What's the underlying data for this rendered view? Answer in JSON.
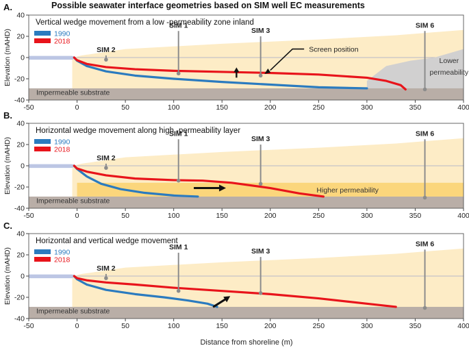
{
  "figure": {
    "title": "Possible seawater interface geometries based on SIM well EC measurements",
    "xlabel": "Distance from shoreline (m)",
    "ylabel": "Elevation (mAHD)"
  },
  "chart_data": [
    {
      "type": "area",
      "panel_letter": "A.",
      "panel_title": "Vertical wedge movement from a low -permeability zone inland",
      "xlim": [
        -50,
        400
      ],
      "ylim": [
        -40,
        40
      ],
      "xticks": [
        -50,
        0,
        50,
        100,
        150,
        200,
        250,
        300,
        350,
        400
      ],
      "yticks": [
        -40,
        -20,
        0,
        20,
        40
      ],
      "legend": [
        {
          "name": "1990",
          "color": "#2b7bbf"
        },
        {
          "name": "2018",
          "color": "#e8141b"
        }
      ],
      "wells": [
        {
          "name": "SIM 2",
          "x": 30,
          "top": 2,
          "bottom": -2
        },
        {
          "name": "SIM 1",
          "x": 105,
          "top": 25,
          "bottom": -15
        },
        {
          "name": "SIM 3",
          "x": 190,
          "top": 20,
          "bottom": -17
        },
        {
          "name": "SIM 6",
          "x": 360,
          "top": 25,
          "bottom": -30
        }
      ],
      "series": [
        {
          "name": "1990",
          "color": "#2b7bbf",
          "x": [
            -3,
            0,
            10,
            30,
            60,
            100,
            150,
            200,
            250,
            300
          ],
          "y": [
            0,
            -3,
            -8,
            -13,
            -17,
            -20,
            -23,
            -25.5,
            -28,
            -29
          ]
        },
        {
          "name": "2018",
          "color": "#e8141b",
          "x": [
            -3,
            0,
            10,
            30,
            60,
            100,
            150,
            200,
            250,
            300,
            320,
            335,
            340
          ],
          "y": [
            0,
            -2.5,
            -6,
            -9,
            -11,
            -12.5,
            -13.5,
            -14.5,
            -16,
            -19,
            -22,
            -26,
            -30
          ]
        }
      ],
      "regions": [
        {
          "label": "Impermeable substrate",
          "y0": -40,
          "y1": -29,
          "color": "#b9aea7"
        },
        {
          "label": "Lower\npermeability",
          "x0": 300,
          "color": "#d1d0d0"
        }
      ],
      "annotations": [
        {
          "text": "Screen position",
          "x": 240,
          "y": 8
        },
        {
          "text": "↑",
          "x": 165,
          "y": -17
        }
      ]
    },
    {
      "type": "area",
      "panel_letter": "B.",
      "panel_title": "Horizontal wedge movement along high -permeability layer",
      "xlim": [
        -50,
        400
      ],
      "ylim": [
        -40,
        40
      ],
      "xticks": [
        -50,
        0,
        50,
        100,
        150,
        200,
        250,
        300,
        350,
        400
      ],
      "yticks": [
        -40,
        -20,
        0,
        20,
        40
      ],
      "legend": [
        {
          "name": "1990",
          "color": "#2b7bbf"
        },
        {
          "name": "2018",
          "color": "#e8141b"
        }
      ],
      "wells": [
        {
          "name": "SIM 2",
          "x": 30,
          "top": 2,
          "bottom": -2
        },
        {
          "name": "SIM 1",
          "x": 105,
          "top": 25,
          "bottom": -14
        },
        {
          "name": "SIM 3",
          "x": 190,
          "top": 20,
          "bottom": -17
        },
        {
          "name": "SIM 6",
          "x": 360,
          "top": 25,
          "bottom": -30
        }
      ],
      "series": [
        {
          "name": "1990",
          "color": "#2b7bbf",
          "x": [
            -3,
            0,
            10,
            25,
            45,
            70,
            100,
            125
          ],
          "y": [
            0,
            -3,
            -10,
            -17,
            -22,
            -25.5,
            -28,
            -29
          ]
        },
        {
          "name": "2018",
          "color": "#e8141b",
          "x": [
            -3,
            0,
            10,
            30,
            60,
            100,
            130,
            160,
            200,
            230,
            255
          ],
          "y": [
            0,
            -2.5,
            -5.5,
            -9,
            -12,
            -13.5,
            -14,
            -16,
            -21,
            -26,
            -29
          ]
        }
      ],
      "regions": [
        {
          "label": "Impermeable substrate",
          "y0": -40,
          "y1": -29,
          "color": "#b9aea7"
        },
        {
          "label": "Higher permeability",
          "y0": -29,
          "y1": -16,
          "color": "#fbd67c"
        }
      ],
      "annotations": [
        {
          "text": "→",
          "x": 135,
          "y": -21
        }
      ]
    },
    {
      "type": "area",
      "panel_letter": "C.",
      "panel_title": "Horizontal and vertical wedge movement",
      "xlim": [
        -50,
        400
      ],
      "ylim": [
        -40,
        40
      ],
      "xticks": [
        -50,
        0,
        50,
        100,
        150,
        200,
        250,
        300,
        350,
        400
      ],
      "yticks": [
        -40,
        -20,
        0,
        20,
        40
      ],
      "legend": [
        {
          "name": "1990",
          "color": "#2b7bbf"
        },
        {
          "name": "2018",
          "color": "#e8141b"
        }
      ],
      "wells": [
        {
          "name": "SIM 2",
          "x": 30,
          "top": 2,
          "bottom": -2
        },
        {
          "name": "SIM 1",
          "x": 105,
          "top": 22,
          "bottom": -14
        },
        {
          "name": "SIM 3",
          "x": 190,
          "top": 18,
          "bottom": -16
        },
        {
          "name": "SIM 6",
          "x": 360,
          "top": 25,
          "bottom": -30
        }
      ],
      "series": [
        {
          "name": "1990",
          "color": "#2b7bbf",
          "x": [
            -3,
            0,
            10,
            30,
            60,
            90,
            115,
            135,
            145
          ],
          "y": [
            0,
            -3,
            -8,
            -13,
            -17,
            -20,
            -23,
            -26,
            -29
          ]
        },
        {
          "name": "2018",
          "color": "#e8141b",
          "x": [
            -3,
            0,
            10,
            30,
            60,
            100,
            150,
            200,
            250,
            300,
            330
          ],
          "y": [
            0,
            -2,
            -4,
            -6,
            -8,
            -11,
            -14,
            -17,
            -21,
            -26,
            -29
          ]
        }
      ],
      "regions": [
        {
          "label": "Impermeable substrate",
          "y0": -40,
          "y1": -29,
          "color": "#b9aea7"
        }
      ],
      "annotations": [
        {
          "text": "↗",
          "x": 150,
          "y": -24
        }
      ]
    }
  ]
}
